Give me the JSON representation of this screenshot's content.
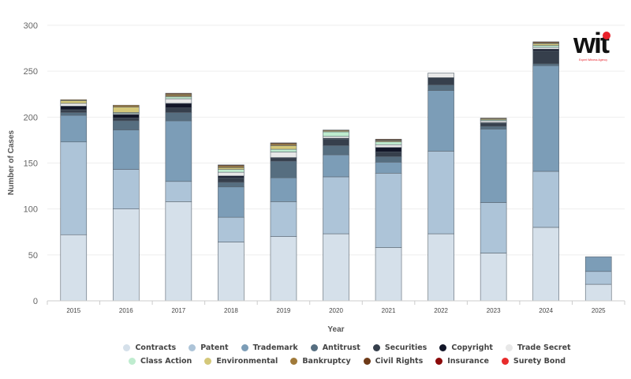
{
  "chart_data": {
    "type": "bar",
    "stacked": true,
    "title": "",
    "xlabel": "Year",
    "ylabel": "Number of Cases",
    "ylim": [
      0,
      300
    ],
    "yticks": [
      0,
      50,
      100,
      150,
      200,
      250,
      300
    ],
    "grid": true,
    "legend_position": "bottom",
    "categories": [
      "2015",
      "2016",
      "2017",
      "2018",
      "2019",
      "2020",
      "2021",
      "2022",
      "2023",
      "2024",
      "2025"
    ],
    "series": [
      {
        "name": "Contracts",
        "color": "#d5e0ea",
        "values": [
          72,
          100,
          108,
          64,
          70,
          73,
          58,
          73,
          52,
          80,
          18
        ]
      },
      {
        "name": "Patent",
        "color": "#adc4d8",
        "values": [
          101,
          43,
          22,
          27,
          38,
          62,
          81,
          90,
          55,
          61,
          14
        ]
      },
      {
        "name": "Trademark",
        "color": "#7c9db7",
        "values": [
          29,
          43,
          66,
          33,
          26,
          24,
          12,
          66,
          80,
          115,
          16
        ]
      },
      {
        "name": "Antitrust",
        "color": "#566e80",
        "values": [
          3,
          10,
          9,
          5,
          18,
          10,
          6,
          6,
          3,
          2,
          0
        ]
      },
      {
        "name": "Securities",
        "color": "#363f4c",
        "values": [
          3,
          3,
          5,
          5,
          3,
          7,
          5,
          8,
          3,
          14,
          0
        ]
      },
      {
        "name": "Copyright",
        "color": "#121628",
        "values": [
          4,
          4,
          5,
          2,
          1,
          1,
          5,
          0,
          1,
          2,
          0
        ]
      },
      {
        "name": "Trade Secret",
        "color": "#e8e8e8",
        "values": [
          3,
          1,
          5,
          4,
          6,
          2,
          3,
          5,
          2,
          2,
          0
        ]
      },
      {
        "name": "Class Action",
        "color": "#bfeccf",
        "values": [
          0,
          1,
          2,
          3,
          3,
          5,
          3,
          0,
          1,
          2,
          0
        ]
      },
      {
        "name": "Environmental",
        "color": "#d4c87a",
        "values": [
          3,
          6,
          1,
          2,
          4,
          1,
          1,
          0,
          1,
          2,
          0
        ]
      },
      {
        "name": "Bankruptcy",
        "color": "#a07a3a",
        "values": [
          1,
          2,
          2,
          2,
          2,
          1,
          1,
          0,
          1,
          1,
          0
        ]
      },
      {
        "name": "Civil Rights",
        "color": "#6e3a18",
        "values": [
          0,
          0,
          1,
          1,
          1,
          0,
          1,
          0,
          0,
          1,
          0
        ]
      },
      {
        "name": "Insurance",
        "color": "#8b0a0a",
        "values": [
          0,
          0,
          0,
          0,
          0,
          0,
          0,
          0,
          0,
          0,
          0
        ]
      },
      {
        "name": "Surety Bond",
        "color": "#e82b2b",
        "values": [
          0,
          0,
          0,
          0,
          0,
          0,
          0,
          0,
          0,
          0,
          0
        ]
      }
    ]
  },
  "logo": {
    "text": "wit",
    "subtitle": "Expert Witness Agency"
  }
}
